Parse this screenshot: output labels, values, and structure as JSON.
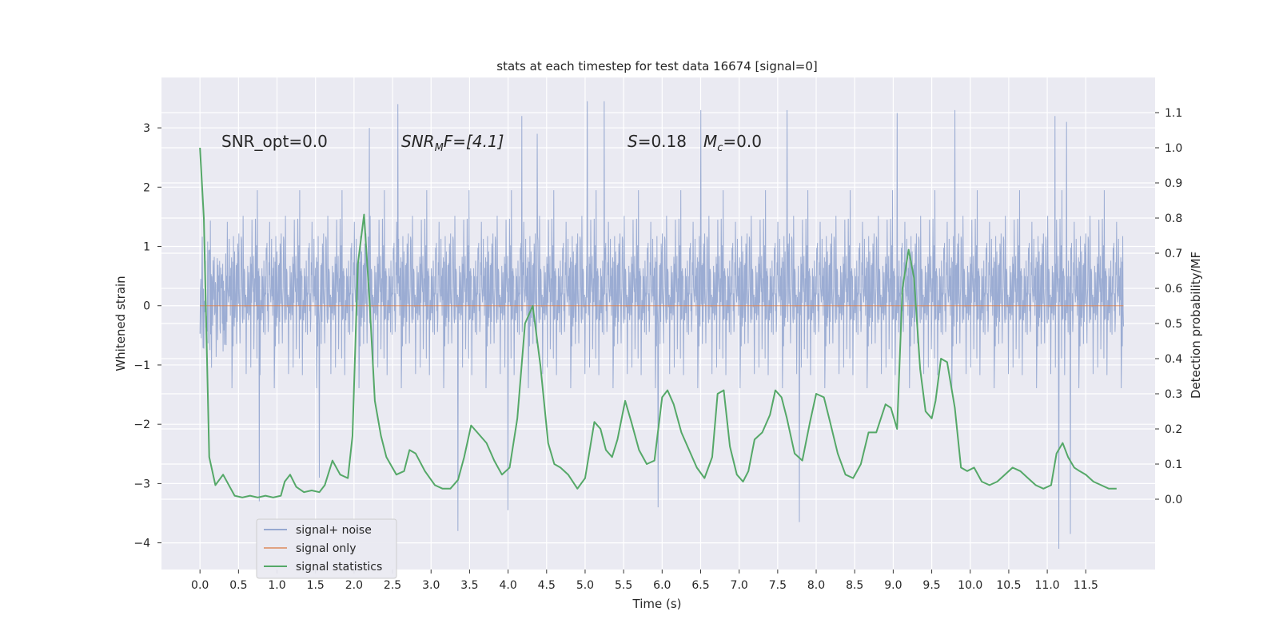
{
  "chart_data": {
    "type": "line",
    "title": "stats at each timestep for test data 16674 [signal=0]",
    "xlabel": "Time (s)",
    "ylabel": "Whitened strain",
    "ylabel_right": "Detection probability/MF",
    "xlim": [
      -0.5,
      12.4
    ],
    "ylim": [
      -4.45,
      3.85
    ],
    "ylim_right": [
      -0.2,
      1.2
    ],
    "x_ticks": [
      0.0,
      0.5,
      1.0,
      1.5,
      2.0,
      2.5,
      3.0,
      3.5,
      4.0,
      4.5,
      5.0,
      5.5,
      6.0,
      6.5,
      7.0,
      7.5,
      8.0,
      8.5,
      9.0,
      9.5,
      10.0,
      10.5,
      11.0,
      11.5
    ],
    "x_tick_labels": [
      "0.0",
      "0.5",
      "1.0",
      "1.5",
      "2.0",
      "2.5",
      "3.0",
      "3.5",
      "4.0",
      "4.5",
      "5.0",
      "5.5",
      "6.0",
      "6.5",
      "7.0",
      "7.5",
      "8.0",
      "8.5",
      "9.0",
      "9.5",
      "10.0",
      "10.5",
      "11.0",
      "11.5"
    ],
    "y_ticks": [
      -4,
      -3,
      -2,
      -1,
      0,
      1,
      2,
      3
    ],
    "y_tick_labels": [
      "−4",
      "−3",
      "−2",
      "−1",
      "0",
      "1",
      "2",
      "3"
    ],
    "y_ticks_right": [
      0.0,
      0.1,
      0.2,
      0.3,
      0.4,
      0.5,
      0.6,
      0.7,
      0.8,
      0.9,
      1.0,
      1.1
    ],
    "y_tick_labels_right": [
      "0.0",
      "0.1",
      "0.2",
      "0.3",
      "0.4",
      "0.5",
      "0.6",
      "0.7",
      "0.8",
      "0.9",
      "1.0",
      "1.1"
    ],
    "grid": true,
    "legend_position": "lower-left",
    "annotations": {
      "snr_opt": "SNR_opt=0.0",
      "snr_mf_base": "SNR",
      "snr_mf_sub": "M",
      "snr_mf_rest": "F=[4.1]",
      "s_base": "S",
      "s_rest": "=0.18",
      "mc_base": "M",
      "mc_sub": "c",
      "mc_rest": "=0.0"
    },
    "series": [
      {
        "name": "signal+ noise",
        "color": "#97a9d1",
        "axis": "left",
        "kind": "noise",
        "x_range": [
          0.0,
          11.99
        ],
        "band": [
          -1.5,
          1.5
        ],
        "spike_max": 3.4,
        "spike_min": -4.1,
        "extremes": [
          {
            "x": 1.55,
            "y": 2.75
          },
          {
            "x": 2.2,
            "y": 3.0
          },
          {
            "x": 2.57,
            "y": 3.4
          },
          {
            "x": 4.18,
            "y": 3.2
          },
          {
            "x": 4.38,
            "y": 2.9
          },
          {
            "x": 5.03,
            "y": 3.45
          },
          {
            "x": 5.25,
            "y": 3.45
          },
          {
            "x": 6.5,
            "y": 3.3
          },
          {
            "x": 7.62,
            "y": 3.3
          },
          {
            "x": 9.05,
            "y": 3.25
          },
          {
            "x": 9.8,
            "y": 3.3
          },
          {
            "x": 11.1,
            "y": 3.2
          },
          {
            "x": 11.25,
            "y": 3.1
          },
          {
            "x": 0.77,
            "y": -3.3
          },
          {
            "x": 3.35,
            "y": -3.8
          },
          {
            "x": 4.0,
            "y": -3.45
          },
          {
            "x": 7.78,
            "y": -3.65
          },
          {
            "x": 5.95,
            "y": -3.4
          },
          {
            "x": 11.15,
            "y": -4.1
          },
          {
            "x": 11.3,
            "y": -3.85
          },
          {
            "x": 1.55,
            "y": -2.9
          }
        ]
      },
      {
        "name": "signal only",
        "color": "#dd8452",
        "axis": "left",
        "x": [
          0.0,
          11.99
        ],
        "y": [
          0.0,
          0.0
        ]
      },
      {
        "name": "signal statistics",
        "color": "#55a868",
        "axis": "right",
        "x": [
          0.0,
          0.05,
          0.12,
          0.2,
          0.3,
          0.4,
          0.45,
          0.55,
          0.65,
          0.75,
          0.85,
          0.95,
          1.05,
          1.1,
          1.17,
          1.25,
          1.35,
          1.45,
          1.55,
          1.62,
          1.72,
          1.82,
          1.92,
          1.98,
          2.05,
          2.13,
          2.2,
          2.27,
          2.35,
          2.42,
          2.55,
          2.65,
          2.72,
          2.8,
          2.92,
          3.05,
          3.15,
          3.25,
          3.35,
          3.43,
          3.52,
          3.6,
          3.72,
          3.82,
          3.92,
          4.02,
          4.12,
          4.22,
          4.32,
          4.42,
          4.52,
          4.6,
          4.68,
          4.78,
          4.9,
          5.0,
          5.12,
          5.2,
          5.27,
          5.35,
          5.42,
          5.52,
          5.6,
          5.7,
          5.8,
          5.9,
          6.0,
          6.07,
          6.15,
          6.25,
          6.35,
          6.45,
          6.55,
          6.65,
          6.72,
          6.8,
          6.88,
          6.97,
          7.05,
          7.12,
          7.2,
          7.3,
          7.4,
          7.47,
          7.55,
          7.62,
          7.72,
          7.82,
          7.92,
          8.0,
          8.1,
          8.18,
          8.28,
          8.38,
          8.48,
          8.58,
          8.68,
          8.78,
          8.9,
          8.97,
          9.05,
          9.12,
          9.2,
          9.27,
          9.35,
          9.42,
          9.5,
          9.55,
          9.62,
          9.7,
          9.8,
          9.88,
          9.96,
          10.05,
          10.15,
          10.25,
          10.35,
          10.45,
          10.55,
          10.65,
          10.75,
          10.85,
          10.95,
          11.05,
          11.12,
          11.2,
          11.27,
          11.35,
          11.42,
          11.5,
          11.6,
          11.7,
          11.8,
          11.9
        ],
        "y": [
          1.0,
          0.8,
          0.12,
          0.04,
          0.07,
          0.03,
          0.01,
          0.005,
          0.01,
          0.005,
          0.01,
          0.005,
          0.01,
          0.05,
          0.07,
          0.035,
          0.02,
          0.025,
          0.02,
          0.04,
          0.11,
          0.07,
          0.06,
          0.18,
          0.67,
          0.81,
          0.57,
          0.28,
          0.18,
          0.12,
          0.07,
          0.08,
          0.14,
          0.13,
          0.08,
          0.04,
          0.03,
          0.03,
          0.055,
          0.12,
          0.21,
          0.19,
          0.16,
          0.11,
          0.07,
          0.09,
          0.23,
          0.5,
          0.55,
          0.38,
          0.16,
          0.1,
          0.09,
          0.07,
          0.03,
          0.06,
          0.22,
          0.2,
          0.14,
          0.12,
          0.17,
          0.28,
          0.22,
          0.14,
          0.1,
          0.11,
          0.29,
          0.31,
          0.27,
          0.19,
          0.14,
          0.09,
          0.06,
          0.12,
          0.3,
          0.31,
          0.15,
          0.07,
          0.05,
          0.08,
          0.17,
          0.19,
          0.24,
          0.31,
          0.29,
          0.23,
          0.13,
          0.11,
          0.22,
          0.3,
          0.29,
          0.22,
          0.13,
          0.07,
          0.06,
          0.1,
          0.19,
          0.19,
          0.27,
          0.26,
          0.2,
          0.6,
          0.71,
          0.63,
          0.37,
          0.25,
          0.23,
          0.28,
          0.4,
          0.39,
          0.26,
          0.09,
          0.08,
          0.09,
          0.05,
          0.04,
          0.05,
          0.07,
          0.09,
          0.08,
          0.06,
          0.04,
          0.03,
          0.04,
          0.13,
          0.16,
          0.12,
          0.09,
          0.08,
          0.07,
          0.05,
          0.04,
          0.03,
          0.03
        ]
      }
    ]
  }
}
